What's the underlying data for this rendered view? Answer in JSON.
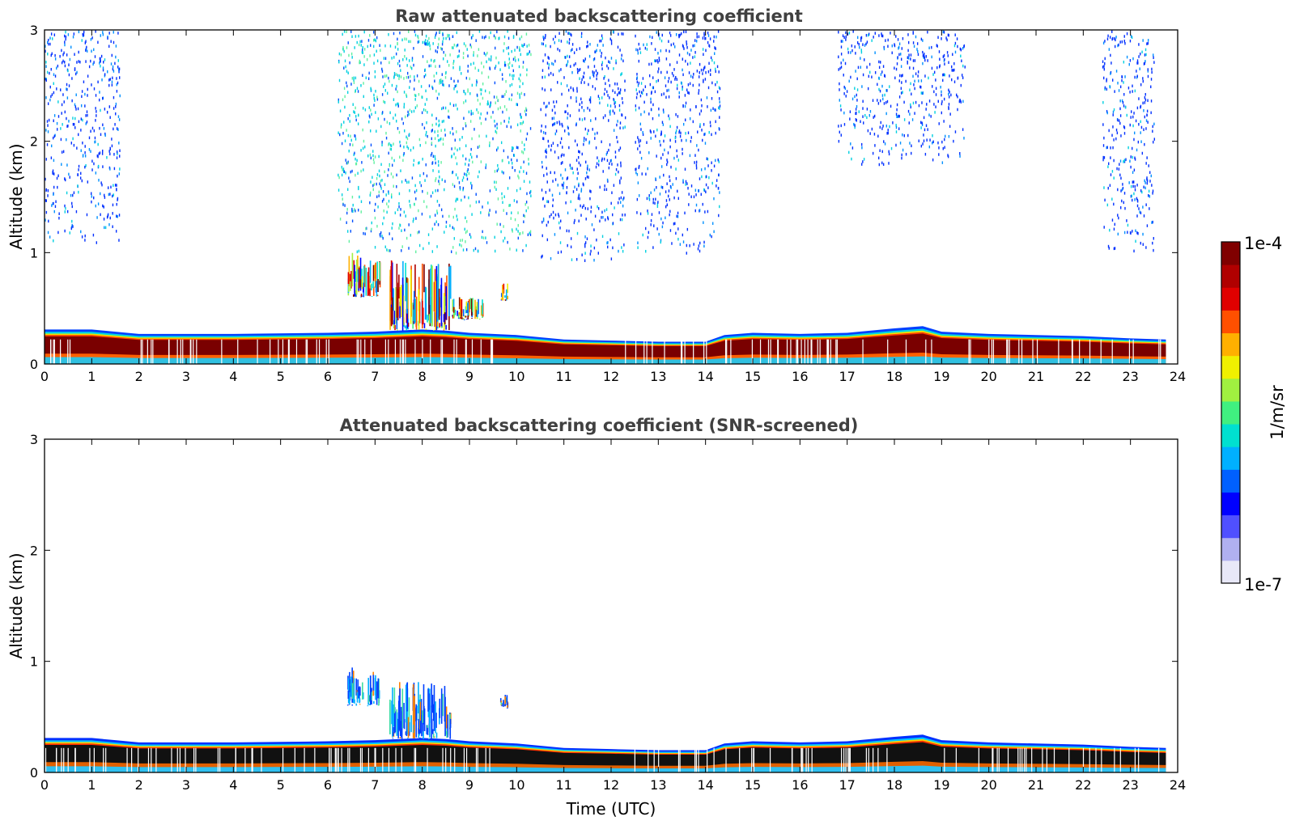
{
  "chart_data": [
    {
      "type": "heatmap",
      "title": "Raw attenuated backscattering coefficient",
      "xlabel": "",
      "ylabel": "Altitude (km)",
      "xlim": [
        0,
        24
      ],
      "ylim": [
        0,
        3
      ],
      "xticks": [
        0,
        1,
        2,
        3,
        4,
        5,
        6,
        7,
        8,
        9,
        10,
        11,
        12,
        13,
        14,
        15,
        16,
        17,
        18,
        19,
        20,
        21,
        22,
        23,
        24
      ],
      "yticks": [
        0,
        1,
        2,
        3
      ],
      "boundary_layer_top_km": [
        [
          0,
          0.31
        ],
        [
          1,
          0.31
        ],
        [
          1.5,
          0.29
        ],
        [
          2,
          0.27
        ],
        [
          4,
          0.27
        ],
        [
          6,
          0.28
        ],
        [
          7,
          0.29
        ],
        [
          8,
          0.31
        ],
        [
          8.5,
          0.3
        ],
        [
          9,
          0.28
        ],
        [
          10,
          0.26
        ],
        [
          11,
          0.22
        ],
        [
          12,
          0.21
        ],
        [
          13,
          0.2
        ],
        [
          14,
          0.2
        ],
        [
          14.4,
          0.26
        ],
        [
          15,
          0.28
        ],
        [
          16,
          0.27
        ],
        [
          17,
          0.28
        ],
        [
          18,
          0.32
        ],
        [
          18.6,
          0.34
        ],
        [
          19,
          0.29
        ],
        [
          20,
          0.27
        ],
        [
          21,
          0.26
        ],
        [
          22,
          0.25
        ],
        [
          23,
          0.23
        ],
        [
          23.75,
          0.22
        ]
      ],
      "cloud_features": [
        {
          "x": [
            6.4,
            7.1
          ],
          "y": [
            0.6,
            1.0
          ]
        },
        {
          "x": [
            7.3,
            8.6
          ],
          "y": [
            0.3,
            0.95
          ]
        },
        {
          "x": [
            8.6,
            9.3
          ],
          "y": [
            0.4,
            0.6
          ]
        },
        {
          "x": [
            9.65,
            9.8
          ],
          "y": [
            0.57,
            0.73
          ]
        }
      ],
      "noise_regions": [
        {
          "x": [
            0.0,
            1.6
          ],
          "y": [
            1.1,
            3.0
          ],
          "level": "blue"
        },
        {
          "x": [
            6.2,
            10.3
          ],
          "y": [
            1.0,
            3.0
          ],
          "level": "cyan"
        },
        {
          "x": [
            10.5,
            12.3
          ],
          "y": [
            0.9,
            3.0
          ],
          "level": "blue"
        },
        {
          "x": [
            12.5,
            14.3
          ],
          "y": [
            1.0,
            3.0
          ],
          "level": "blue"
        },
        {
          "x": [
            16.8,
            19.5
          ],
          "y": [
            1.8,
            3.0
          ],
          "level": "blue"
        },
        {
          "x": [
            22.4,
            23.5
          ],
          "y": [
            1.0,
            3.0
          ],
          "level": "blue"
        }
      ]
    },
    {
      "type": "heatmap",
      "title": "Attenuated backscattering coefficient (SNR-screened)",
      "xlabel": "Time (UTC)",
      "ylabel": "Altitude (km)",
      "xlim": [
        0,
        24
      ],
      "ylim": [
        0,
        3
      ],
      "xticks": [
        0,
        1,
        2,
        3,
        4,
        5,
        6,
        7,
        8,
        9,
        10,
        11,
        12,
        13,
        14,
        15,
        16,
        17,
        18,
        19,
        20,
        21,
        22,
        23,
        24
      ],
      "yticks": [
        0,
        1,
        2,
        3
      ],
      "cloud_features": [
        {
          "x": [
            6.4,
            7.1
          ],
          "y": [
            0.6,
            0.95
          ]
        },
        {
          "x": [
            7.3,
            8.6
          ],
          "y": [
            0.3,
            0.82
          ]
        },
        {
          "x": [
            9.65,
            9.8
          ],
          "y": [
            0.58,
            0.7
          ]
        }
      ]
    }
  ],
  "colorbar": {
    "min_label": "1e-7",
    "max_label": "1e-4",
    "label": "1/m/sr",
    "colors": [
      "#e8e8f8",
      "#b0b0f0",
      "#5050ff",
      "#0000ff",
      "#0060ff",
      "#00b0ff",
      "#00e0d0",
      "#40f080",
      "#a0f040",
      "#f0f000",
      "#ffb000",
      "#ff5000",
      "#e00000",
      "#b00000",
      "#800000"
    ]
  }
}
